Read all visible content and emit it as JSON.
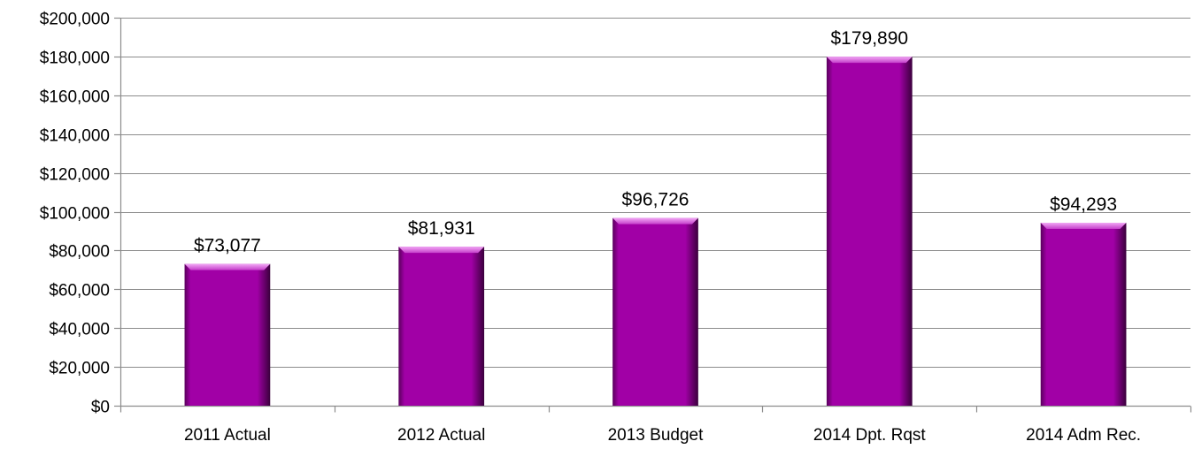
{
  "chart_data": {
    "type": "bar",
    "title": "",
    "xlabel": "",
    "ylabel": "",
    "categories": [
      "2011 Actual",
      "2012 Actual",
      "2013 Budget",
      "2014 Dpt. Rqst",
      "2014 Adm Rec."
    ],
    "values": [
      73077,
      81931,
      96726,
      179890,
      94293
    ],
    "data_labels": [
      "$73,077",
      "$81,931",
      "$96,726",
      "$179,890",
      "$94,293"
    ],
    "ylim": [
      0,
      200000
    ],
    "y_ticks": [
      0,
      20000,
      40000,
      60000,
      80000,
      100000,
      120000,
      140000,
      160000,
      180000,
      200000
    ],
    "y_tick_labels": [
      "$0",
      "$20,000",
      "$40,000",
      "$60,000",
      "$80,000",
      "$100,000",
      "$120,000",
      "$140,000",
      "$160,000",
      "$180,000",
      "$200,000"
    ],
    "grid": true,
    "legend": "none",
    "bar_color": "#a100a6",
    "bar_color_light": "#e27be6",
    "bar_color_dark": "#3a003c"
  }
}
